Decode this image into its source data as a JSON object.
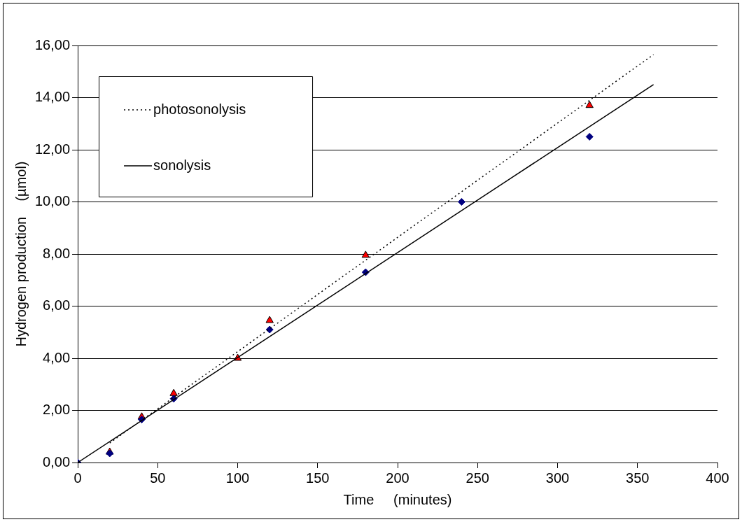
{
  "chart_data": {
    "type": "scatter",
    "xlabel": "Time     (minutes)",
    "ylabel": "Hydrogen production    (µmol)",
    "xlim": [
      0,
      400
    ],
    "xticks": [
      0,
      50,
      100,
      150,
      200,
      250,
      300,
      350,
      400
    ],
    "ylim": [
      0,
      16
    ],
    "yticks": [
      {
        "value": 0,
        "label": "0,00"
      },
      {
        "value": 2,
        "label": "2,00"
      },
      {
        "value": 4,
        "label": "4,00"
      },
      {
        "value": 6,
        "label": "6,00"
      },
      {
        "value": 8,
        "label": "8,00"
      },
      {
        "value": 10,
        "label": "10,00"
      },
      {
        "value": 12,
        "label": "12,00"
      },
      {
        "value": 14,
        "label": "14,00"
      },
      {
        "value": 16,
        "label": "16,00"
      }
    ],
    "grid": "y",
    "legend": "top left",
    "series": [
      {
        "type": "scatter",
        "marker": "triangle",
        "color": "#ff0000",
        "x": [
          20,
          40,
          60,
          100,
          120,
          180,
          320
        ],
        "values": [
          0.4,
          1.75,
          2.65,
          4.0,
          5.45,
          7.95,
          13.7
        ]
      },
      {
        "type": "scatter",
        "marker": "diamond",
        "color": "#000080",
        "x": [
          0,
          20,
          40,
          60,
          100,
          120,
          180,
          240,
          320
        ],
        "values": [
          0,
          0.35,
          1.65,
          2.45,
          null,
          5.1,
          7.3,
          10.0,
          12.5
        ]
      },
      {
        "type": "line",
        "name": "photosonolysis",
        "marker": "none",
        "line_style": "dotted",
        "color": "#000000",
        "x": [
          20,
          360
        ],
        "values": [
          0.75,
          15.65
        ]
      },
      {
        "type": "line",
        "name": "sonolysis",
        "marker": "none",
        "line_style": "solid",
        "color": "#000000",
        "x": [
          0,
          360
        ],
        "values": [
          0,
          14.5
        ]
      }
    ]
  }
}
